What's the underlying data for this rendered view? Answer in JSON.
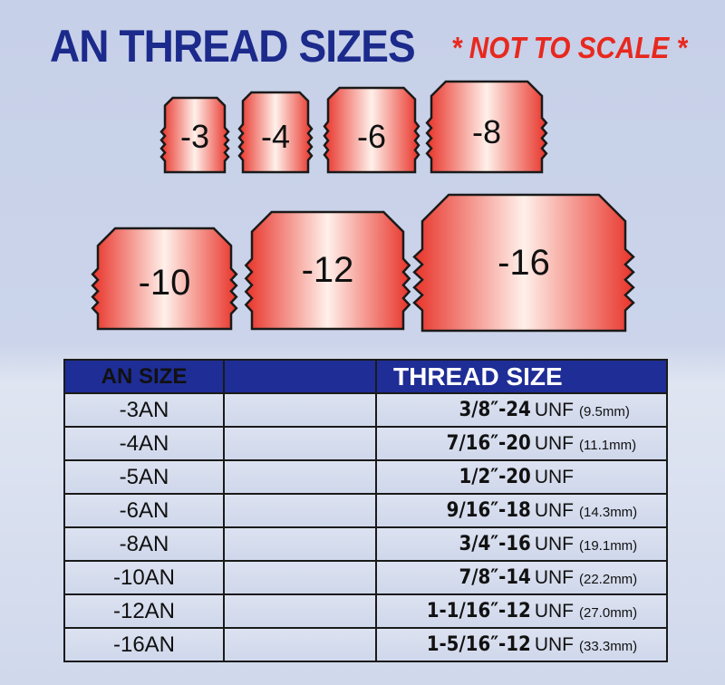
{
  "title": "AN THREAD SIZES",
  "note": "* NOT TO SCALE *",
  "colors": {
    "title": "#1c2a8c",
    "note": "#e8281e",
    "header_bg": "#1f2d96",
    "fitting_edge": "#e8342a",
    "fitting_center": "#fff0ea"
  },
  "fittings": [
    "-3",
    "-4",
    "-6",
    "-8",
    "-10",
    "-12",
    "-16"
  ],
  "table": {
    "headers": [
      "AN SIZE",
      "",
      "THREAD SIZE"
    ],
    "rows": [
      {
        "an": "-3AN",
        "thread": "3/8″-24",
        "unit": "UNF",
        "mm": "(9.5mm)"
      },
      {
        "an": "-4AN",
        "thread": "7/16″-20",
        "unit": "UNF",
        "mm": "(11.1mm)"
      },
      {
        "an": "-5AN",
        "thread": "1/2″-20",
        "unit": "UNF",
        "mm": ""
      },
      {
        "an": "-6AN",
        "thread": "9/16″-18",
        "unit": "UNF",
        "mm": "(14.3mm)"
      },
      {
        "an": "-8AN",
        "thread": "3/4″-16",
        "unit": "UNF",
        "mm": "(19.1mm)"
      },
      {
        "an": "-10AN",
        "thread": "7/8″-14",
        "unit": "UNF",
        "mm": "(22.2mm)"
      },
      {
        "an": "-12AN",
        "thread": "1-1/16″-12",
        "unit": "UNF",
        "mm": "(27.0mm)"
      },
      {
        "an": "-16AN",
        "thread": "1-5/16″-12",
        "unit": "UNF",
        "mm": "(33.3mm)"
      }
    ]
  }
}
